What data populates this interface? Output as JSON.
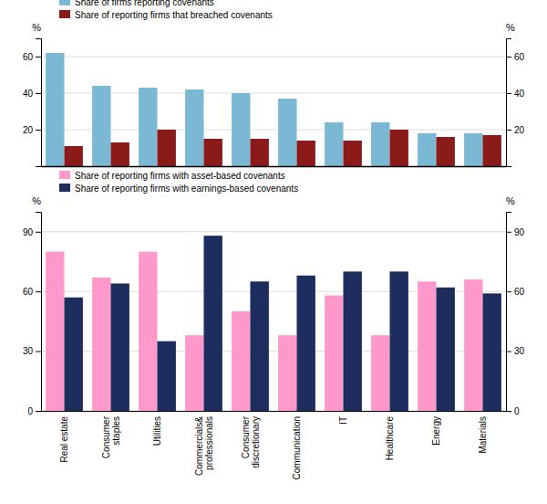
{
  "chart_data": [
    {
      "type": "bar",
      "categories": [
        "Real estate",
        "Consumer\nstaples",
        "Utilities",
        "Commercials&\nprofessionals",
        "Consumer\ndiscretionary",
        "Communication",
        "IT",
        "Healthcare",
        "Energy",
        "Materials"
      ],
      "series": [
        {
          "name": "Share of firms reporting covenants",
          "color": "#7BB8D4",
          "values": [
            62,
            44,
            43,
            42,
            40,
            37,
            24,
            24,
            18,
            18
          ]
        },
        {
          "name": "Share of reporting firms that breached covenants",
          "color": "#8B1A1A",
          "values": [
            11,
            13,
            20,
            15,
            15,
            14,
            14,
            20,
            16,
            17
          ]
        }
      ],
      "ylabel": "%",
      "y2label": "%",
      "ylim": [
        0,
        70
      ],
      "yticks": [
        20,
        40,
        60
      ],
      "y2lim": [
        0,
        70
      ],
      "y2ticks": [
        20,
        40,
        60
      ],
      "grid": true,
      "legend": "upper left",
      "tick_labels": "y"
    },
    {
      "type": "bar",
      "categories": [
        "Real estate",
        "Consumer\nstaples",
        "Utilities",
        "Commercials&\nprofessionals",
        "Consumer\ndiscretionary",
        "Communication",
        "IT",
        "Healthcare",
        "Energy",
        "Materials"
      ],
      "series": [
        {
          "name": "Share of reporting firms with asset-based covenants",
          "color": "#FF99CC",
          "values": [
            80,
            67,
            80,
            38,
            50,
            38,
            58,
            38,
            65,
            66
          ]
        },
        {
          "name": "Share of reporting firms with earnings-based covenants",
          "color": "#1C2D5E",
          "values": [
            57,
            64,
            35,
            88,
            65,
            68,
            70,
            70,
            62,
            59
          ]
        }
      ],
      "ylabel": "%",
      "y2label": "%",
      "ylim": [
        0,
        100
      ],
      "yticks": [
        0,
        30,
        60,
        90
      ],
      "y2lim": [
        0,
        100
      ],
      "y2ticks": [
        0,
        30,
        60,
        90
      ],
      "grid": true,
      "legend": "upper left"
    }
  ]
}
